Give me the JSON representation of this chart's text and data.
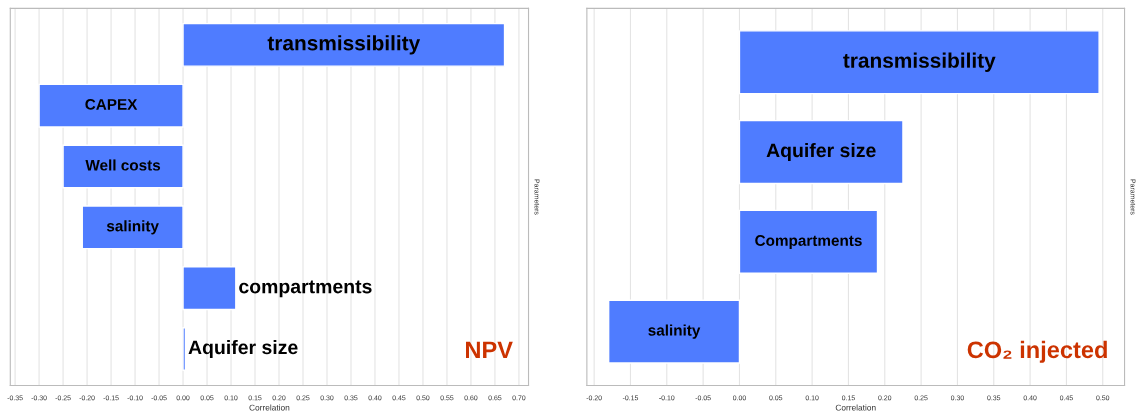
{
  "chart_data": [
    {
      "type": "bar",
      "orientation": "horizontal",
      "categories": [
        "transmissibility",
        "CAPEX",
        "Well costs",
        "salinity",
        "compartments",
        "Aquifer size"
      ],
      "values": [
        0.67,
        -0.3,
        -0.25,
        -0.21,
        0.11,
        0.005
      ],
      "color": "#4f7cff",
      "xlabel": "Correlation",
      "ylabel": "Parameters",
      "xlim": [
        -0.36,
        0.72
      ],
      "xticks": [
        {
          "value": -0.35,
          "label": "-0.35"
        },
        {
          "value": -0.3,
          "label": "-0.30"
        },
        {
          "value": -0.25,
          "label": "-0.25"
        },
        {
          "value": -0.2,
          "label": "-0.20"
        },
        {
          "value": -0.15,
          "label": "-0.15"
        },
        {
          "value": -0.1,
          "label": "-0.10"
        },
        {
          "value": -0.05,
          "label": "-0.05"
        },
        {
          "value": 0,
          "label": "0.00"
        },
        {
          "value": 0.05,
          "label": "0.05"
        },
        {
          "value": 0.1,
          "label": "0.10"
        },
        {
          "value": 0.15,
          "label": "0.15"
        },
        {
          "value": 0.2,
          "label": "0.20"
        },
        {
          "value": 0.25,
          "label": "0.25"
        },
        {
          "value": 0.3,
          "label": "0.30"
        },
        {
          "value": 0.35,
          "label": "0.35"
        },
        {
          "value": 0.4,
          "label": "0.40"
        },
        {
          "value": 0.45,
          "label": "0.45"
        },
        {
          "value": 0.5,
          "label": "0.50"
        },
        {
          "value": 0.55,
          "label": "0.55"
        },
        {
          "value": 0.6,
          "label": "0.60"
        },
        {
          "value": 0.65,
          "label": "0.65"
        },
        {
          "value": 0.7,
          "label": "0.70"
        }
      ],
      "grid": "x",
      "tick_labels": "x",
      "annotations": [
        "NPV"
      ]
    },
    {
      "type": "bar",
      "orientation": "horizontal",
      "categories": [
        "transmissibility",
        "Aquifer size",
        "Compartments",
        "salinity"
      ],
      "values": [
        0.495,
        0.225,
        0.19,
        -0.18
      ],
      "color": "#4f7cff",
      "xlabel": "Correlation",
      "ylabel": "Parameters",
      "xlim": [
        -0.21,
        0.53
      ],
      "xticks": [
        {
          "value": -0.2,
          "label": "-0.20"
        },
        {
          "value": -0.15,
          "label": "-0.15"
        },
        {
          "value": -0.1,
          "label": "-0.10"
        },
        {
          "value": -0.05,
          "label": "-0.05"
        },
        {
          "value": 0,
          "label": "0.00"
        },
        {
          "value": 0.05,
          "label": "0.05"
        },
        {
          "value": 0.1,
          "label": "0.10"
        },
        {
          "value": 0.15,
          "label": "0.15"
        },
        {
          "value": 0.2,
          "label": "0.20"
        },
        {
          "value": 0.25,
          "label": "0.25"
        },
        {
          "value": 0.3,
          "label": "0.30"
        },
        {
          "value": 0.35,
          "label": "0.35"
        },
        {
          "value": 0.4,
          "label": "0.40"
        },
        {
          "value": 0.45,
          "label": "0.45"
        },
        {
          "value": 0.5,
          "label": "0.50"
        }
      ],
      "grid": "x",
      "tick_labels": "x",
      "annotations": [
        "CO₂ injected"
      ]
    }
  ]
}
